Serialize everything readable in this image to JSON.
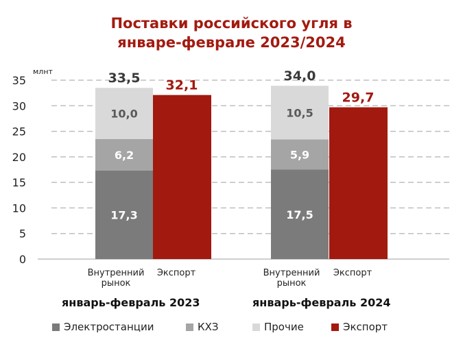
{
  "chart_data": {
    "type": "bar",
    "title_line1": "Поставки российского угля в",
    "title_line2": "январе-феврале 2023/2024",
    "ylabel": "млнт",
    "ylim": [
      0,
      35
    ],
    "yticks": [
      0,
      5,
      10,
      15,
      20,
      25,
      30,
      35
    ],
    "groups": [
      {
        "label": "январь-февраль 2023",
        "domestic_label": "Внутренний рынок",
        "domestic_label_l1": "Внутренний",
        "domestic_label_l2": "рынок",
        "export_label": "Экспорт",
        "domestic_total": "33,5",
        "export_value_text": "32,1",
        "stack": [
          {
            "series": "Электростанции",
            "value": 17.3,
            "text": "17,3"
          },
          {
            "series": "КХЗ",
            "value": 6.2,
            "text": "6,2"
          },
          {
            "series": "Прочие",
            "value": 10.0,
            "text": "10,0"
          }
        ],
        "export": 32.1
      },
      {
        "label": "январь-февраль 2024",
        "domestic_label": "Внутренний рынок",
        "domestic_label_l1": "Внутренний",
        "domestic_label_l2": "рынок",
        "export_label": "Экспорт",
        "domestic_total": "34,0",
        "export_value_text": "29,7",
        "stack": [
          {
            "series": "Электростанции",
            "value": 17.5,
            "text": "17,5"
          },
          {
            "series": "КХЗ",
            "value": 5.9,
            "text": "5,9"
          },
          {
            "series": "Прочие",
            "value": 10.5,
            "text": "10,5"
          }
        ],
        "export": 29.7
      }
    ],
    "legend": [
      {
        "name": "Электростанции",
        "color": "#7b7b7b"
      },
      {
        "name": "КХЗ",
        "color": "#a5a5a5"
      },
      {
        "name": "Прочие",
        "color": "#d9d9d9"
      },
      {
        "name": "Экспорт",
        "color": "#a2190f"
      }
    ],
    "legend_placement": "bottom",
    "grid": true
  }
}
